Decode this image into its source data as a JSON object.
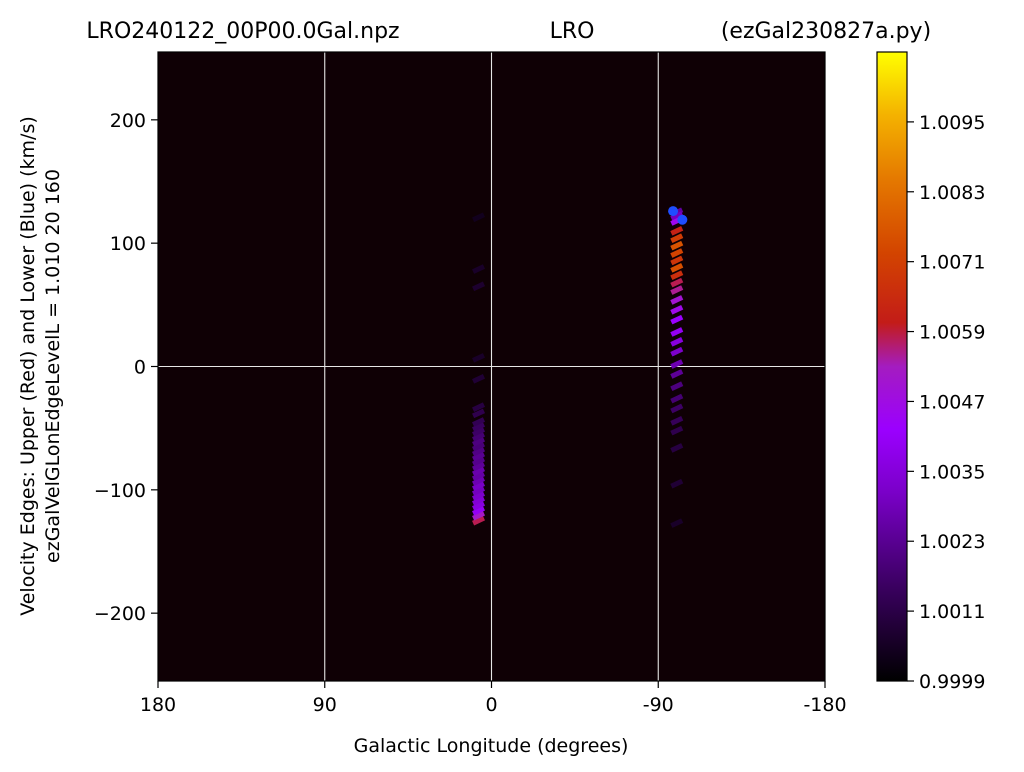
{
  "title": {
    "left": "LRO240122_00P00.0Gal.npz",
    "center": "LRO",
    "right": "(ezGal230827a.py)"
  },
  "chart_data": {
    "type": "heatmap",
    "xlabel": "Galactic Longitude (degrees)",
    "ylabel_line1": "Velocity Edges: Upper (Red) and Lower (Blue) (km/s)",
    "ylabel_line2": "ezGalVelGLonEdgeLevelL = 1.010  20  160",
    "xlim": [
      180,
      -180
    ],
    "ylim": [
      -255,
      255
    ],
    "x_ticks": [
      {
        "value": 180,
        "label": "180"
      },
      {
        "value": 90,
        "label": "90"
      },
      {
        "value": 0,
        "label": "0"
      },
      {
        "value": -90,
        "label": "-90"
      },
      {
        "value": -180,
        "label": "-180"
      }
    ],
    "y_ticks": [
      {
        "value": 200,
        "label": "200"
      },
      {
        "value": 100,
        "label": "100"
      },
      {
        "value": 0,
        "label": "0"
      },
      {
        "value": -100,
        "label": "−100"
      },
      {
        "value": -200,
        "label": "−200"
      }
    ],
    "grid_x": [
      90,
      0,
      -90
    ],
    "grid_y": [
      0
    ],
    "grid_color": "#e6e6e6",
    "background_color": "#0f0005",
    "colormap": "gnuplot",
    "colorbar": {
      "min": 0.9999,
      "max": 1.0107,
      "ticks": [
        "1.0095",
        "1.0083",
        "1.0071",
        "1.0059",
        "1.0047",
        "1.0035",
        "1.0023",
        "1.0011",
        "0.9999"
      ]
    },
    "series": [
      {
        "glon": 7,
        "points": [
          {
            "v": -125,
            "level": 1.0058
          },
          {
            "v": -121,
            "level": 1.0052
          },
          {
            "v": -117,
            "level": 1.004
          },
          {
            "v": -113,
            "level": 1.0036
          },
          {
            "v": -109,
            "level": 1.0034
          },
          {
            "v": -105,
            "level": 1.0032
          },
          {
            "v": -101,
            "level": 1.003
          },
          {
            "v": -97,
            "level": 1.0031
          },
          {
            "v": -93,
            "level": 1.0028
          },
          {
            "v": -89,
            "level": 1.0026
          },
          {
            "v": -85,
            "level": 1.0027
          },
          {
            "v": -81,
            "level": 1.0024
          },
          {
            "v": -77,
            "level": 1.0022
          },
          {
            "v": -73,
            "level": 1.0023
          },
          {
            "v": -69,
            "level": 1.0021
          },
          {
            "v": -65,
            "level": 1.0019
          },
          {
            "v": -61,
            "level": 1.002
          },
          {
            "v": -57,
            "level": 1.0018
          },
          {
            "v": -53,
            "level": 1.0016
          },
          {
            "v": -49,
            "level": 1.0015
          },
          {
            "v": -45,
            "level": 1.0013
          },
          {
            "v": -38,
            "level": 1.0012
          },
          {
            "v": -33,
            "level": 1.001
          },
          {
            "v": -10,
            "level": 1.0008
          },
          {
            "v": 7,
            "level": 1.0006
          },
          {
            "v": 65,
            "level": 1.0007
          },
          {
            "v": 79,
            "level": 1.0006
          },
          {
            "v": 121,
            "level": 1.0004
          }
        ]
      },
      {
        "glon": -100,
        "points": [
          {
            "v": 125,
            "level": 1.0025
          },
          {
            "v": 122,
            "level": 1.003
          },
          {
            "v": 118,
            "level": 1.0045
          },
          {
            "v": 110,
            "level": 1.0062
          },
          {
            "v": 104,
            "level": 1.007
          },
          {
            "v": 98,
            "level": 1.0076
          },
          {
            "v": 92,
            "level": 1.0072
          },
          {
            "v": 86,
            "level": 1.0068
          },
          {
            "v": 80,
            "level": 1.0075
          },
          {
            "v": 74,
            "level": 1.0066
          },
          {
            "v": 68,
            "level": 1.0058
          },
          {
            "v": 62,
            "level": 1.0055
          },
          {
            "v": 54,
            "level": 1.005
          },
          {
            "v": 46,
            "level": 1.0046
          },
          {
            "v": 38,
            "level": 1.0042
          },
          {
            "v": 28,
            "level": 1.004
          },
          {
            "v": 20,
            "level": 1.0036
          },
          {
            "v": 12,
            "level": 1.0032
          },
          {
            "v": 2,
            "level": 1.0028
          },
          {
            "v": -6,
            "level": 1.0024
          },
          {
            "v": -16,
            "level": 1.002
          },
          {
            "v": -26,
            "level": 1.0018
          },
          {
            "v": -34,
            "level": 1.0016
          },
          {
            "v": -44,
            "level": 1.0014
          },
          {
            "v": -52,
            "level": 1.0012
          },
          {
            "v": -66,
            "level": 1.001
          },
          {
            "v": -95,
            "level": 1.0008
          },
          {
            "v": -127,
            "level": 1.0006
          }
        ]
      }
    ],
    "edge_markers": [
      {
        "glon": -98,
        "v": 126,
        "level": 1.002
      },
      {
        "glon": -103,
        "v": 119,
        "level": 1.0018
      }
    ]
  }
}
